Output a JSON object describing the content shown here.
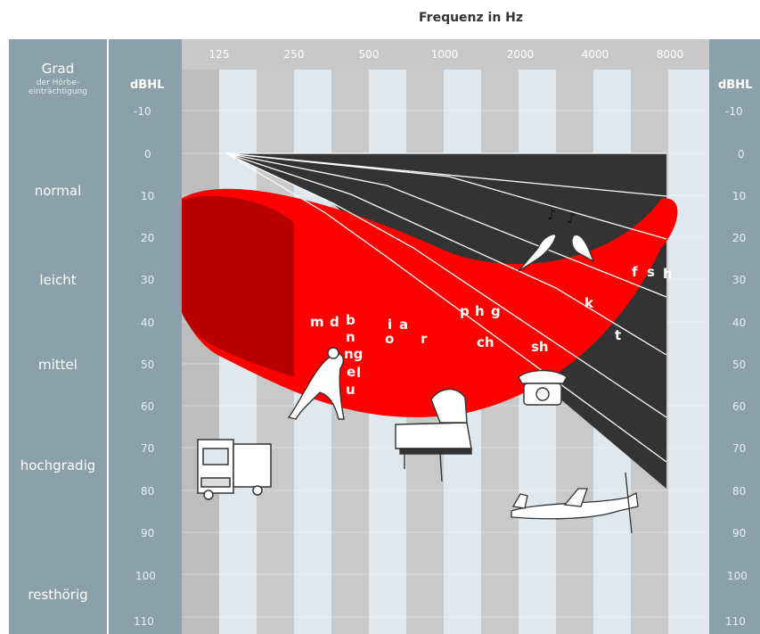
{
  "title": "Frequenz in Hz",
  "grad_title": "Grad",
  "grad_subtitle_line1": "der Hörbe-",
  "grad_subtitle_line2": "einträchtigung",
  "unit_left": "dBHL",
  "unit_right": "dBHL",
  "frequencies": [
    "125",
    "250",
    "500",
    "1000",
    "2000",
    "4000",
    "8000"
  ],
  "db_levels": [
    "-10",
    "0",
    "10",
    "20",
    "30",
    "40",
    "50",
    "60",
    "70",
    "80",
    "90",
    "100",
    "110"
  ],
  "degrees": {
    "normal": "normal",
    "leicht": "leicht",
    "mittel": "mittel",
    "hochgradig": "hochgradig",
    "resthoerig": "resthörig"
  },
  "speech_sounds": {
    "m": "m",
    "d": "d",
    "b": "b",
    "n": "n",
    "ng": "ng",
    "e": "e",
    "l": "l",
    "u": "u",
    "i": "i",
    "a": "a",
    "o": "o",
    "r": "r",
    "p": "p",
    "h1": "h",
    "g": "g",
    "ch": "ch",
    "sh": "sh",
    "k": "k",
    "t": "t",
    "f": "f",
    "s": "s",
    "h2": "h"
  },
  "colors": {
    "band": "#8aa0ab",
    "banana_red": "#ff0000",
    "banana_dark": "#b80000",
    "noise_gray": "#333333",
    "column_dark": "#bdbdbd",
    "column_light": "#dfe8ee"
  },
  "sound_sources": [
    "truck-icon",
    "dog-icon",
    "piano-icon",
    "telephone-icon",
    "birds-icon",
    "airplane-icon"
  ]
}
